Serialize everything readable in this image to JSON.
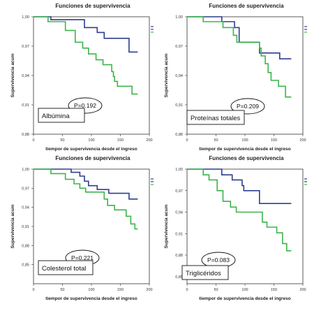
{
  "chart_data": [
    {
      "type": "line",
      "title": "Funciones de supervivencia",
      "xlabel": "tiempor de supervivencia desde el ingreso",
      "ylabel": "Supervivencia acum",
      "xlim": [
        0,
        200
      ],
      "ylim": [
        0.88,
        1.0
      ],
      "x_ticks": [
        "0",
        "50",
        "100",
        "150",
        "200"
      ],
      "y_ticks": [
        "1,00",
        "0,97",
        "0,94",
        "0,91",
        "0,88"
      ],
      "label": "Albúmina",
      "p_value": "P=0.192",
      "grid": false,
      "series": [
        {
          "color": "#2e3f8f",
          "points": [
            [
              0,
              1.0
            ],
            [
              30,
              1.0
            ],
            [
              30,
              0.997
            ],
            [
              88,
              0.997
            ],
            [
              88,
              0.989
            ],
            [
              110,
              0.989
            ],
            [
              110,
              0.984
            ],
            [
              122,
              0.984
            ],
            [
              122,
              0.978
            ],
            [
              165,
              0.978
            ],
            [
              165,
              0.964
            ],
            [
              180,
              0.964
            ]
          ]
        },
        {
          "color": "#3cb54a",
          "points": [
            [
              0,
              1.0
            ],
            [
              25,
              1.0
            ],
            [
              25,
              0.995
            ],
            [
              55,
              0.995
            ],
            [
              55,
              0.986
            ],
            [
              72,
              0.986
            ],
            [
              72,
              0.974
            ],
            [
              85,
              0.974
            ],
            [
              85,
              0.968
            ],
            [
              95,
              0.968
            ],
            [
              95,
              0.962
            ],
            [
              108,
              0.962
            ],
            [
              108,
              0.956
            ],
            [
              120,
              0.956
            ],
            [
              120,
              0.951
            ],
            [
              135,
              0.951
            ],
            [
              135,
              0.944
            ],
            [
              138,
              0.944
            ],
            [
              138,
              0.939
            ],
            [
              140,
              0.939
            ],
            [
              140,
              0.934
            ],
            [
              145,
              0.934
            ],
            [
              145,
              0.929
            ],
            [
              170,
              0.929
            ],
            [
              170,
              0.921
            ],
            [
              180,
              0.921
            ]
          ]
        }
      ]
    },
    {
      "type": "line",
      "title": "Funciones de supervivencia",
      "xlabel": "tiempor de supervivencia desde el ingreso",
      "ylabel": "Supervivencia acum",
      "xlim": [
        0,
        200
      ],
      "ylim": [
        0.88,
        1.0
      ],
      "x_ticks": [
        "0",
        "50",
        "100",
        "150",
        "200"
      ],
      "y_ticks": [
        "1,00",
        "0,97",
        "0,94",
        "0,91",
        "0,88"
      ],
      "label": "Proteínas totales",
      "p_value": "P=0.209",
      "grid": false,
      "series": [
        {
          "color": "#2e3f8f",
          "points": [
            [
              0,
              1.0
            ],
            [
              60,
              1.0
            ],
            [
              60,
              0.995
            ],
            [
              82,
              0.995
            ],
            [
              82,
              0.989
            ],
            [
              90,
              0.989
            ],
            [
              90,
              0.974
            ],
            [
              125,
              0.974
            ],
            [
              125,
              0.963
            ],
            [
              160,
              0.963
            ],
            [
              160,
              0.957
            ],
            [
              180,
              0.957
            ]
          ]
        },
        {
          "color": "#3cb54a",
          "points": [
            [
              0,
              1.0
            ],
            [
              28,
              1.0
            ],
            [
              28,
              0.995
            ],
            [
              62,
              0.995
            ],
            [
              62,
              0.989
            ],
            [
              80,
              0.989
            ],
            [
              80,
              0.981
            ],
            [
              86,
              0.981
            ],
            [
              86,
              0.974
            ],
            [
              125,
              0.974
            ],
            [
              125,
              0.968
            ],
            [
              128,
              0.968
            ],
            [
              128,
              0.96
            ],
            [
              135,
              0.96
            ],
            [
              135,
              0.952
            ],
            [
              140,
              0.952
            ],
            [
              140,
              0.943
            ],
            [
              145,
              0.943
            ],
            [
              145,
              0.935
            ],
            [
              158,
              0.935
            ],
            [
              158,
              0.929
            ],
            [
              170,
              0.929
            ],
            [
              170,
              0.918
            ],
            [
              180,
              0.918
            ]
          ]
        }
      ]
    },
    {
      "type": "line",
      "title": "Funciones de supervivencia",
      "xlabel": "tiempor de supervivencia desde el ingreso",
      "ylabel": "Supervivencia acum",
      "xlim": [
        0,
        200
      ],
      "ylim": [
        0.82,
        1.0
      ],
      "x_ticks": [
        "0",
        "50",
        "100",
        "150",
        "200"
      ],
      "y_ticks": [
        "1,00",
        "0,97",
        "0,94",
        "0,91",
        "0,88",
        "0,85"
      ],
      "label": "Colesterol total",
      "p_value": "P=0.221",
      "grid": false,
      "series": [
        {
          "color": "#2e3f8f",
          "points": [
            [
              0,
              1.0
            ],
            [
              65,
              1.0
            ],
            [
              65,
              0.995
            ],
            [
              80,
              0.995
            ],
            [
              80,
              0.989
            ],
            [
              88,
              0.989
            ],
            [
              88,
              0.981
            ],
            [
              95,
              0.981
            ],
            [
              95,
              0.974
            ],
            [
              110,
              0.974
            ],
            [
              110,
              0.968
            ],
            [
              130,
              0.968
            ],
            [
              130,
              0.962
            ],
            [
              165,
              0.962
            ],
            [
              165,
              0.953
            ],
            [
              180,
              0.953
            ]
          ]
        },
        {
          "color": "#3cb54a",
          "points": [
            [
              0,
              1.0
            ],
            [
              30,
              1.0
            ],
            [
              30,
              0.993
            ],
            [
              55,
              0.993
            ],
            [
              55,
              0.984
            ],
            [
              70,
              0.984
            ],
            [
              70,
              0.977
            ],
            [
              80,
              0.977
            ],
            [
              80,
              0.97
            ],
            [
              90,
              0.97
            ],
            [
              90,
              0.964
            ],
            [
              122,
              0.964
            ],
            [
              122,
              0.953
            ],
            [
              128,
              0.953
            ],
            [
              128,
              0.943
            ],
            [
              140,
              0.943
            ],
            [
              140,
              0.936
            ],
            [
              160,
              0.936
            ],
            [
              160,
              0.926
            ],
            [
              168,
              0.926
            ],
            [
              168,
              0.914
            ],
            [
              175,
              0.914
            ],
            [
              175,
              0.906
            ],
            [
              180,
              0.906
            ]
          ]
        }
      ]
    },
    {
      "type": "line",
      "title": "Funciones de supervivencia",
      "xlabel": "tiempor de supervivencia desde el ingreso",
      "ylabel": "Supervivencia acum",
      "xlim": [
        0,
        200
      ],
      "ylim": [
        0.84,
        1.0
      ],
      "x_ticks": [
        "0",
        "50",
        "100",
        "150",
        "200"
      ],
      "y_ticks": [
        "1,00",
        "0,97",
        "0,94",
        "0,91",
        "0,88",
        "0,85"
      ],
      "label": "Triglicéridos",
      "p_value": "P=0.083",
      "grid": false,
      "series": [
        {
          "color": "#2e3f8f",
          "points": [
            [
              0,
              1.0
            ],
            [
              60,
              1.0
            ],
            [
              60,
              0.992
            ],
            [
              78,
              0.992
            ],
            [
              78,
              0.985
            ],
            [
              95,
              0.985
            ],
            [
              95,
              0.977
            ],
            [
              98,
              0.977
            ],
            [
              98,
              0.97
            ],
            [
              125,
              0.97
            ],
            [
              125,
              0.952
            ],
            [
              180,
              0.952
            ]
          ]
        },
        {
          "color": "#3cb54a",
          "points": [
            [
              0,
              1.0
            ],
            [
              28,
              1.0
            ],
            [
              28,
              0.992
            ],
            [
              38,
              0.992
            ],
            [
              38,
              0.985
            ],
            [
              52,
              0.985
            ],
            [
              52,
              0.97
            ],
            [
              62,
              0.97
            ],
            [
              62,
              0.955
            ],
            [
              75,
              0.955
            ],
            [
              75,
              0.947
            ],
            [
              85,
              0.947
            ],
            [
              85,
              0.94
            ],
            [
              130,
              0.94
            ],
            [
              130,
              0.926
            ],
            [
              138,
              0.926
            ],
            [
              138,
              0.919
            ],
            [
              155,
              0.919
            ],
            [
              155,
              0.911
            ],
            [
              165,
              0.911
            ],
            [
              165,
              0.896
            ],
            [
              172,
              0.896
            ],
            [
              172,
              0.886
            ],
            [
              180,
              0.886
            ]
          ]
        }
      ]
    }
  ]
}
